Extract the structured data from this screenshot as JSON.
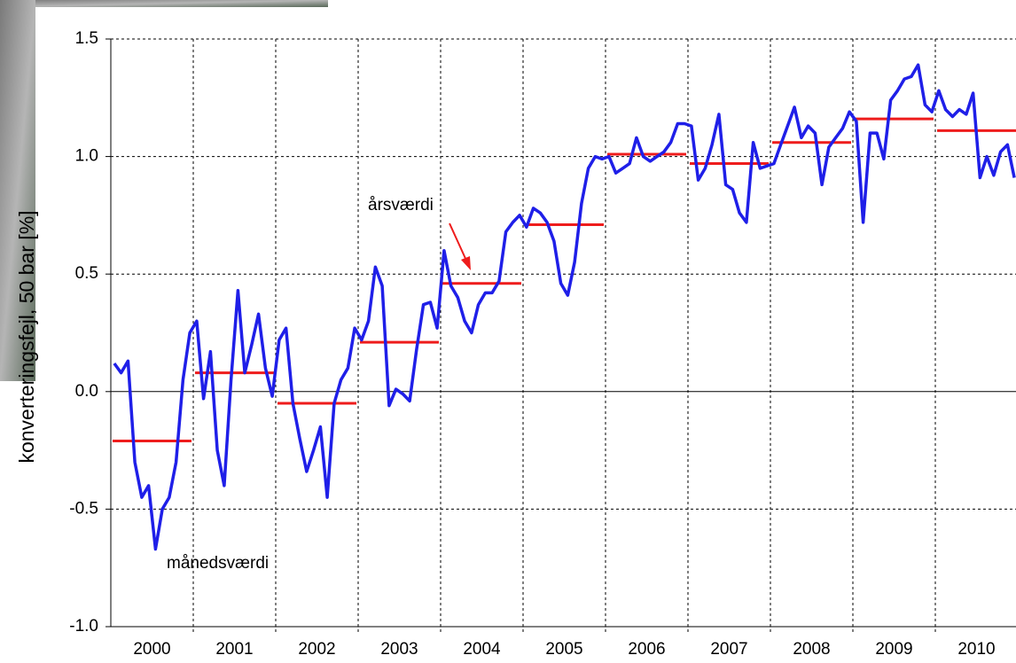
{
  "chart_data": {
    "type": "line",
    "y_label": "konverteringsfejl, 50 bar [%]",
    "categories": [
      "2000",
      "2001",
      "2002",
      "2003",
      "2004",
      "2005",
      "2006",
      "2007",
      "2008",
      "2009",
      "2010"
    ],
    "monthly_color": "#1f1fe8",
    "annual_color": "#ee1c1c",
    "monthly_values": [
      [
        0.12,
        0.08,
        0.13,
        -0.3,
        -0.45,
        -0.4,
        -0.67,
        -0.5,
        -0.45,
        -0.3,
        0.05,
        0.25
      ],
      [
        0.3,
        -0.03,
        0.17,
        -0.25,
        -0.4,
        0.05,
        0.43,
        0.08,
        0.2,
        0.33,
        0.1,
        -0.02
      ],
      [
        0.22,
        0.27,
        -0.05,
        -0.2,
        -0.34,
        -0.25,
        -0.15,
        -0.45,
        -0.05,
        0.05,
        0.1,
        0.27
      ],
      [
        0.22,
        0.3,
        0.53,
        0.45,
        -0.06,
        0.01,
        -0.01,
        -0.04,
        0.18,
        0.37,
        0.38,
        0.27
      ],
      [
        0.6,
        0.45,
        0.4,
        0.3,
        0.25,
        0.37,
        0.42,
        0.42,
        0.47,
        0.68,
        0.72,
        0.75
      ],
      [
        0.7,
        0.78,
        0.76,
        0.72,
        0.64,
        0.46,
        0.41,
        0.55,
        0.8,
        0.95,
        1.0,
        0.99
      ],
      [
        1.0,
        0.93,
        0.95,
        0.97,
        1.08,
        1.0,
        0.98,
        1.0,
        1.02,
        1.06,
        1.14,
        1.14
      ],
      [
        1.13,
        0.9,
        0.95,
        1.05,
        1.18,
        0.88,
        0.86,
        0.76,
        0.72,
        1.06,
        0.95,
        0.96
      ],
      [
        0.97,
        1.05,
        1.13,
        1.21,
        1.08,
        1.13,
        1.1,
        0.88,
        1.04,
        1.08,
        1.12,
        1.19
      ],
      [
        1.15,
        0.72,
        1.1,
        1.1,
        0.99,
        1.24,
        1.28,
        1.33,
        1.34,
        1.39,
        1.22,
        1.19
      ],
      [
        1.28,
        1.2,
        1.17,
        1.2,
        1.18,
        1.27,
        0.91,
        1.0,
        0.92,
        1.02,
        1.05,
        0.91
      ]
    ],
    "annual_values": [
      -0.21,
      0.08,
      -0.05,
      0.21,
      0.46,
      0.71,
      1.01,
      0.97,
      1.06,
      1.16,
      1.11
    ],
    "annotations": [
      "årsværdi",
      "månedsværdi"
    ],
    "ylim": [
      -1.0,
      1.5
    ],
    "yticks": [
      {
        "value": -1,
        "label": "-1.0"
      },
      -0.5,
      {
        "value": 0,
        "label": "0.0"
      },
      0.5,
      {
        "value": 1,
        "label": "1.0"
      },
      1.5
    ],
    "grid": true
  }
}
